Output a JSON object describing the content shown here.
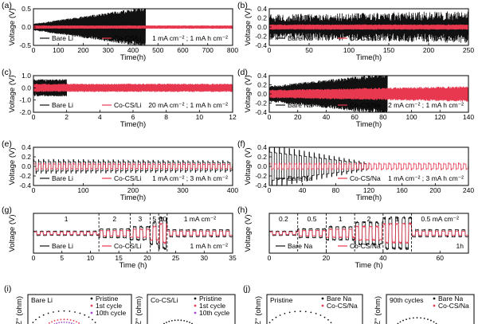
{
  "colors": {
    "bare": "#111111",
    "coated": "#e8384f"
  },
  "chart_data": [
    {
      "id": "a",
      "type": "line",
      "panel_label": "(a)",
      "xlabel": "Time(h)",
      "ylabel": "Voltage (V)",
      "xlim": [
        0,
        800
      ],
      "xticks": [
        "0",
        "100",
        "200",
        "300",
        "400",
        "500",
        "600",
        "700",
        "800"
      ],
      "ylim": [
        -0.5,
        0.5
      ],
      "yticks": [
        "-0.5",
        "0.0",
        "0.5"
      ],
      "condition": "1 mA cm⁻² ; 1 mA h cm⁻²",
      "series": [
        {
          "name": "Bare Li",
          "color": "#111111",
          "kind": "grow",
          "x_end": 450,
          "amp_start": 0.08,
          "amp_end": 0.48
        },
        {
          "name": "Co-CS/Li",
          "color": "#e8384f",
          "kind": "band",
          "x_end": 800,
          "amp_start": 0.04,
          "amp_end": 0.04
        }
      ]
    },
    {
      "id": "b",
      "type": "line",
      "panel_label": "(b)",
      "xlabel": "Time(h)",
      "ylabel": "Voltage (V)",
      "xlim": [
        0,
        250
      ],
      "xticks": [
        "0",
        "50",
        "100",
        "150",
        "200",
        "250"
      ],
      "ylim": [
        -0.4,
        0.4
      ],
      "yticks": [
        "-0.4",
        "-0.2",
        "0.0",
        "0.2",
        "0.4"
      ],
      "condition": "1 mA cm⁻² ; 1 mA h cm⁻²",
      "series": [
        {
          "name": "Bare Na",
          "color": "#111111",
          "kind": "spiky",
          "x_end": 250,
          "amp_start": 0.2,
          "amp_end": 0.25
        },
        {
          "name": "Co-CS/Na",
          "color": "#e8384f",
          "kind": "band",
          "x_end": 250,
          "amp_start": 0.05,
          "amp_end": 0.05
        }
      ]
    },
    {
      "id": "c",
      "type": "line",
      "panel_label": "(c)",
      "xlabel": "Time(h)",
      "ylabel": "Voltage (V)",
      "xlim": [
        0,
        12
      ],
      "xticks": [
        "0",
        "2",
        "4",
        "6",
        "8",
        "10",
        "12"
      ],
      "ylim": [
        -2.0,
        1.0
      ],
      "yticks": [
        "-2.0",
        "-1.0",
        "0.0",
        "1.0"
      ],
      "condition": "20 mA cm⁻² ; 1 mA h cm⁻²",
      "series": [
        {
          "name": "Bare Li",
          "color": "#111111",
          "kind": "spiky",
          "x_end": 2,
          "amp_start": 0.5,
          "amp_end": 0.5
        },
        {
          "name": "Co-CS/Li",
          "color": "#e8384f",
          "kind": "band",
          "x_end": 12,
          "amp_start": 0.3,
          "amp_end": 0.3
        }
      ]
    },
    {
      "id": "d",
      "type": "line",
      "panel_label": "(d)",
      "xlabel": "Time(h)",
      "ylabel": "Voltage (V)",
      "xlim": [
        0,
        140
      ],
      "xticks": [
        "0",
        "20",
        "40",
        "60",
        "80",
        "100",
        "120",
        "140"
      ],
      "ylim": [
        -0.4,
        0.4
      ],
      "yticks": [
        "-0.4",
        "-0.2",
        "0.0",
        "0.2",
        "0.4"
      ],
      "condition": "2 mA cm⁻² ; 1 mA h cm⁻²",
      "series": [
        {
          "name": "Bare Na",
          "color": "#111111",
          "kind": "grow",
          "x_end": 83,
          "amp_start": 0.15,
          "amp_end": 0.4
        },
        {
          "name": "Co-CS/Na",
          "color": "#e8384f",
          "kind": "band",
          "x_end": 140,
          "amp_start": 0.08,
          "amp_end": 0.15
        }
      ]
    },
    {
      "id": "e",
      "type": "line",
      "panel_label": "(e)",
      "xlabel": "Time(h)",
      "ylabel": "Voltage (V)",
      "xlim": [
        0,
        400
      ],
      "xticks": [
        "0",
        "100",
        "200",
        "300",
        "400"
      ],
      "ylim": [
        -0.4,
        0.4
      ],
      "yticks": [
        "-0.4",
        "-0.2",
        "0.0",
        "0.2",
        "0.4"
      ],
      "condition": "1 mA cm⁻² ; 3 mA h cm⁻²",
      "series": [
        {
          "name": "Bare Li",
          "color": "#111111",
          "kind": "square",
          "x_end": 400,
          "amp_start": 0.1,
          "amp_end": 0.08
        },
        {
          "name": "Co-CS/Li",
          "color": "#e8384f",
          "kind": "square",
          "x_end": 400,
          "amp_start": 0.05,
          "amp_end": 0.04
        }
      ]
    },
    {
      "id": "f",
      "type": "line",
      "panel_label": "(f)",
      "xlabel": "Time(h)",
      "ylabel": "Voltage (V)",
      "xlim": [
        0,
        240
      ],
      "xticks": [
        "0",
        "40",
        "80",
        "120",
        "160",
        "200",
        "240"
      ],
      "ylim": [
        -0.4,
        0.4
      ],
      "yticks": [
        "-0.4",
        "-0.2",
        "0.0",
        "0.2",
        "0.4"
      ],
      "condition": "1 mA cm⁻² ; 3 mA h cm⁻²",
      "series": [
        {
          "name": "Bare Na",
          "color": "#111111",
          "kind": "square",
          "x_end": 120,
          "amp_start": 0.3,
          "amp_end": 0.05
        },
        {
          "name": "Co-CS/Na",
          "color": "#e8384f",
          "kind": "square",
          "x_end": 240,
          "amp_start": 0.05,
          "amp_end": 0.05
        }
      ]
    },
    {
      "id": "g",
      "type": "line",
      "panel_label": "(g)",
      "xlabel": "Time (h)",
      "ylabel": "Voltage (V)",
      "xlim": [
        0,
        35
      ],
      "xticks": [
        "0",
        "5",
        "10",
        "15",
        "20",
        "25",
        "30",
        "35"
      ],
      "ylim": [
        -0.6,
        0.6
      ],
      "yticks": [],
      "condition": "1 mA h cm⁻²",
      "rate_segments": [
        {
          "label": "1",
          "x_start": 0,
          "x_end": 11.5
        },
        {
          "label": "2",
          "x_start": 11.5,
          "x_end": 17
        },
        {
          "label": "3",
          "x_start": 17,
          "x_end": 20.5
        },
        {
          "label": "5",
          "x_start": 20.5,
          "x_end": 22
        },
        {
          "label": "10",
          "x_start": 22,
          "x_end": 23.5
        },
        {
          "label": "1 mA cm⁻²",
          "x_start": 23.5,
          "x_end": 35
        }
      ],
      "series": [
        {
          "name": "Bare Li",
          "color": "#111111",
          "kind": "rate",
          "x_end": 35
        },
        {
          "name": "Co-CS/Li",
          "color": "#e8384f",
          "kind": "rate",
          "x_end": 35
        }
      ]
    },
    {
      "id": "h",
      "type": "line",
      "panel_label": "(h)",
      "xlabel": "Time (h)",
      "ylabel": "Voltage (V)",
      "xlim": [
        0,
        70
      ],
      "xticks": [
        "0",
        "20",
        "40",
        "60"
      ],
      "ylim": [
        -0.6,
        0.6
      ],
      "yticks": [],
      "condition": "1h",
      "rate_segments": [
        {
          "label": "0.2",
          "x_start": 0,
          "x_end": 10
        },
        {
          "label": "0.5",
          "x_start": 10,
          "x_end": 20
        },
        {
          "label": "1",
          "x_start": 20,
          "x_end": 30
        },
        {
          "label": "2",
          "x_start": 30,
          "x_end": 40
        },
        {
          "label": "1",
          "x_start": 40,
          "x_end": 50
        },
        {
          "label": "0.5 mA cm⁻²",
          "x_start": 50,
          "x_end": 70
        }
      ],
      "series": [
        {
          "name": "Bare Na",
          "color": "#111111",
          "kind": "rate",
          "x_end": 70
        },
        {
          "name": "Co-CS/Na",
          "color": "#e8384f",
          "kind": "rate",
          "x_end": 70
        }
      ]
    },
    {
      "id": "i1",
      "type": "scatter",
      "panel_label": "(i)",
      "ylabel": "-Z'' (ohm)",
      "title_text": "Bare Li",
      "series": [
        {
          "name": "Pristine",
          "color": "#111111",
          "radius": 0.75
        },
        {
          "name": "1st cycle",
          "color": "#e8384f",
          "radius": 0.45
        },
        {
          "name": "10th cycle",
          "color": "#a04ad4",
          "radius": 0.35
        }
      ]
    },
    {
      "id": "i2",
      "type": "scatter",
      "panel_label": "",
      "ylabel": "-Z'' (ohm)",
      "title_text": "Co-CS/Li",
      "series": [
        {
          "name": "Pristine",
          "color": "#111111",
          "radius": 0.5
        },
        {
          "name": "1st cycle",
          "color": "#e8384f",
          "radius": 0.3
        },
        {
          "name": "10th cycle",
          "color": "#a04ad4",
          "radius": 0.25
        }
      ]
    },
    {
      "id": "j1",
      "type": "scatter",
      "panel_label": "(j)",
      "ylabel": "-Z'' (ohm)",
      "title_text": "Pristine",
      "series": [
        {
          "name": "Bare Na",
          "color": "#111111",
          "radius": 0.8
        },
        {
          "name": "Co-CS/Na",
          "color": "#e8384f",
          "radius": 0.2
        }
      ]
    },
    {
      "id": "j2",
      "type": "scatter",
      "panel_label": "",
      "ylabel": "-Z'' (ohm)",
      "title_text": "90th cycles",
      "series": [
        {
          "name": "Bare Na",
          "color": "#111111",
          "radius": 0.6
        },
        {
          "name": "Co-CS/Na",
          "color": "#e8384f",
          "radius": 0.2
        }
      ]
    }
  ]
}
